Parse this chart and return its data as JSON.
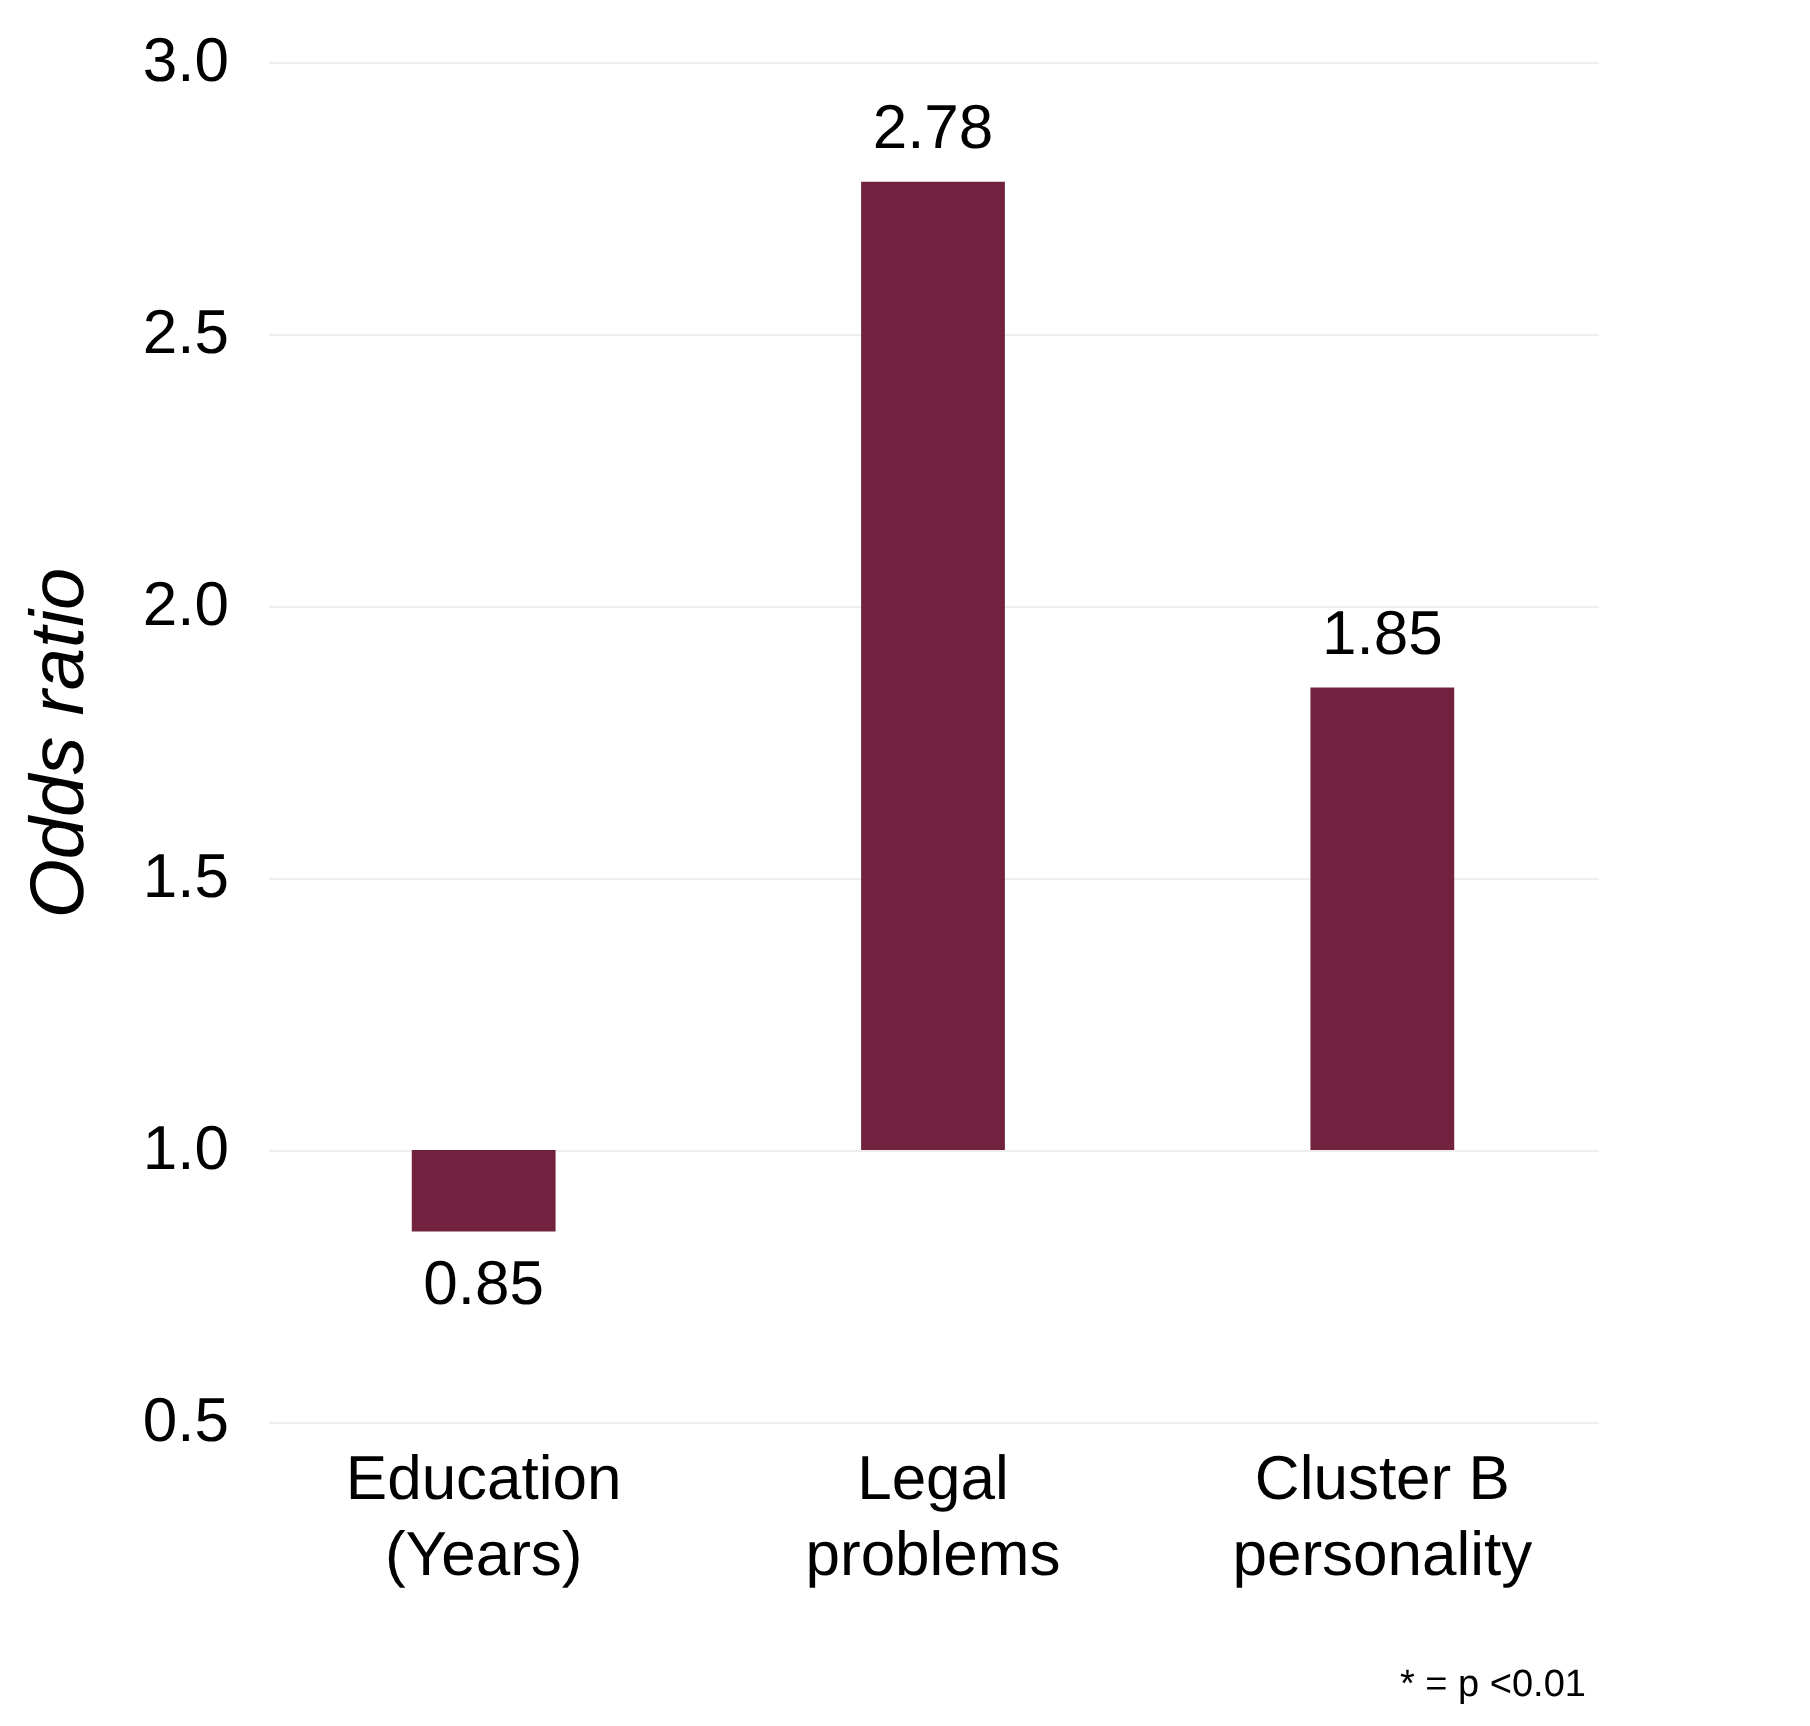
{
  "chart_data": {
    "type": "bar",
    "ylabel": "Odds ratio",
    "categories": [
      "Education\n(Years)",
      "Legal\nproblems",
      "Cluster B\npersonality"
    ],
    "base": [
      1,
      1,
      1
    ],
    "values": [
      -0.15,
      1.78,
      0.85
    ],
    "value_labels": [
      "0.85",
      "2.78",
      "1.85"
    ],
    "color": "#72223f",
    "ylim": [
      0.5,
      3.0
    ],
    "yticks": [
      {
        "value": 0.5,
        "label": "0.5"
      },
      {
        "value": 1.0,
        "label": "1.0"
      },
      {
        "value": 1.5,
        "label": "1.5"
      },
      {
        "value": 2.0,
        "label": "2.0"
      },
      {
        "value": 2.5,
        "label": "2.5"
      },
      {
        "value": 3.0,
        "label": "3.0"
      }
    ],
    "grid": "y",
    "annotations": [
      "* = p <0.01"
    ]
  }
}
